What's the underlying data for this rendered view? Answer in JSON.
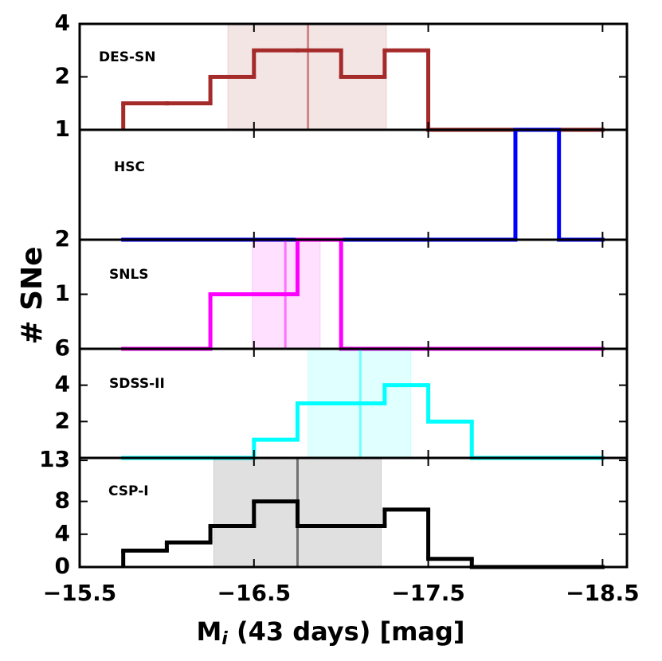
{
  "ylabel": "# SNe",
  "chart_data": [
    {
      "type": "histogram",
      "label": "DES-SN",
      "color": "#a52a2a",
      "bins": [
        -15.75,
        -16.0,
        -16.25,
        -16.5,
        -16.75,
        -17.0,
        -17.25,
        -17.5,
        -17.75,
        -18.0,
        -18.25,
        -18.5
      ],
      "values": [
        1,
        1,
        2,
        3,
        3,
        2,
        3,
        0,
        0,
        0,
        0
      ],
      "band": [
        -16.35,
        -17.26
      ],
      "median": -16.81,
      "xlim": [
        -15.5,
        -18.64
      ],
      "ylim": [
        0,
        4
      ],
      "yticks": [
        2,
        4
      ]
    },
    {
      "type": "histogram",
      "label": "HSC",
      "color": "#0000ff",
      "bins": [
        -15.75,
        -16.0,
        -16.25,
        -16.5,
        -16.75,
        -17.0,
        -17.25,
        -17.5,
        -17.75,
        -18.0,
        -18.25,
        -18.5
      ],
      "values": [
        0,
        0,
        0,
        0,
        0,
        0,
        0,
        0,
        0,
        1,
        0
      ],
      "xlim": [
        -15.5,
        -18.64
      ],
      "ylim": [
        0,
        1
      ],
      "yticks": [
        1
      ]
    },
    {
      "type": "histogram",
      "label": "SNLS",
      "color": "#ff00ff",
      "bins": [
        -15.75,
        -16.0,
        -16.25,
        -16.5,
        -16.75,
        -17.0,
        -17.25,
        -17.5,
        -17.75,
        -18.0,
        -18.25,
        -18.5
      ],
      "values": [
        0,
        0,
        1,
        1,
        2,
        0,
        0,
        0,
        0,
        0,
        0
      ],
      "band": [
        -16.49,
        -16.88
      ],
      "median": -16.68,
      "xlim": [
        -15.5,
        -18.64
      ],
      "ylim": [
        0,
        2
      ],
      "yticks": [
        1,
        2
      ]
    },
    {
      "type": "histogram",
      "label": "SDSS-II",
      "color": "#00ffff",
      "bins": [
        -15.75,
        -16.0,
        -16.25,
        -16.5,
        -16.75,
        -17.0,
        -17.25,
        -17.5,
        -17.75,
        -18.0,
        -18.25,
        -18.5
      ],
      "values": [
        0,
        0,
        0,
        1,
        3,
        3,
        4,
        2,
        0,
        0,
        0
      ],
      "band": [
        -16.81,
        -17.4
      ],
      "median": -17.11,
      "xlim": [
        -15.5,
        -18.64
      ],
      "ylim": [
        0,
        6
      ],
      "yticks": [
        2,
        4,
        6
      ]
    },
    {
      "type": "histogram",
      "label": "CSP-I",
      "color": "#000000",
      "bins": [
        -15.75,
        -16.0,
        -16.25,
        -16.5,
        -16.75,
        -17.0,
        -17.25,
        -17.5,
        -17.75,
        -18.0,
        -18.25,
        -18.5
      ],
      "values": [
        2,
        3,
        5,
        8,
        5,
        5,
        7,
        1,
        0,
        0,
        0
      ],
      "band": [
        -16.27,
        -17.23
      ],
      "median": -16.75,
      "xlim": [
        -15.5,
        -18.64
      ],
      "ylim": [
        0,
        13.3
      ],
      "yticks": [
        0,
        4,
        8,
        13
      ],
      "xlabel": {
        "main": "M",
        "sub": "i",
        "rest": " (43 days) [mag]"
      },
      "xticks": [
        {
          "value": -15.5,
          "label": "−15.5"
        },
        {
          "value": -16.5,
          "label": "−16.5"
        },
        {
          "value": -17.5,
          "label": "−17.5"
        },
        {
          "value": -18.5,
          "label": "−18.5"
        }
      ]
    }
  ]
}
